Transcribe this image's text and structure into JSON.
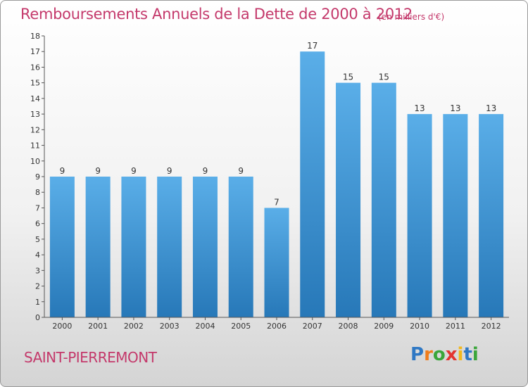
{
  "chart_data": {
    "type": "bar",
    "title": "Remboursements Annuels de la Dette de 2000 à 2012",
    "unit_note": "(en milliers d'€)",
    "categories": [
      "2000",
      "2001",
      "2002",
      "2003",
      "2004",
      "2005",
      "2006",
      "2007",
      "2008",
      "2009",
      "2010",
      "2011",
      "2012"
    ],
    "values": [
      9,
      9,
      9,
      9,
      9,
      9,
      7,
      17,
      15,
      15,
      13,
      13,
      13
    ],
    "data_labels": [
      "9",
      "9",
      "9",
      "9",
      "9",
      "9",
      "7",
      "17",
      "15",
      "15",
      "13",
      "13",
      "13"
    ],
    "y_ticks": [
      0,
      1,
      2,
      3,
      4,
      5,
      6,
      7,
      8,
      9,
      10,
      11,
      12,
      13,
      14,
      15,
      16,
      17,
      18
    ],
    "ylim": [
      0,
      18
    ],
    "grid": false,
    "colors": {
      "bar_light": "#5aaee8",
      "bar_dark": "#2778b8",
      "text": "#333333",
      "axis": "#555555"
    }
  },
  "footer": {
    "commune": "SAINT-PIERREMONT",
    "logo_letters": [
      "P",
      "r",
      "o",
      "x",
      "i",
      "t",
      "i"
    ],
    "logo_colors": [
      "#2f78c4",
      "#f07d1c",
      "#3aa63a",
      "#e3342f",
      "#f2b81c",
      "#2f78c4",
      "#3aa63a"
    ]
  }
}
